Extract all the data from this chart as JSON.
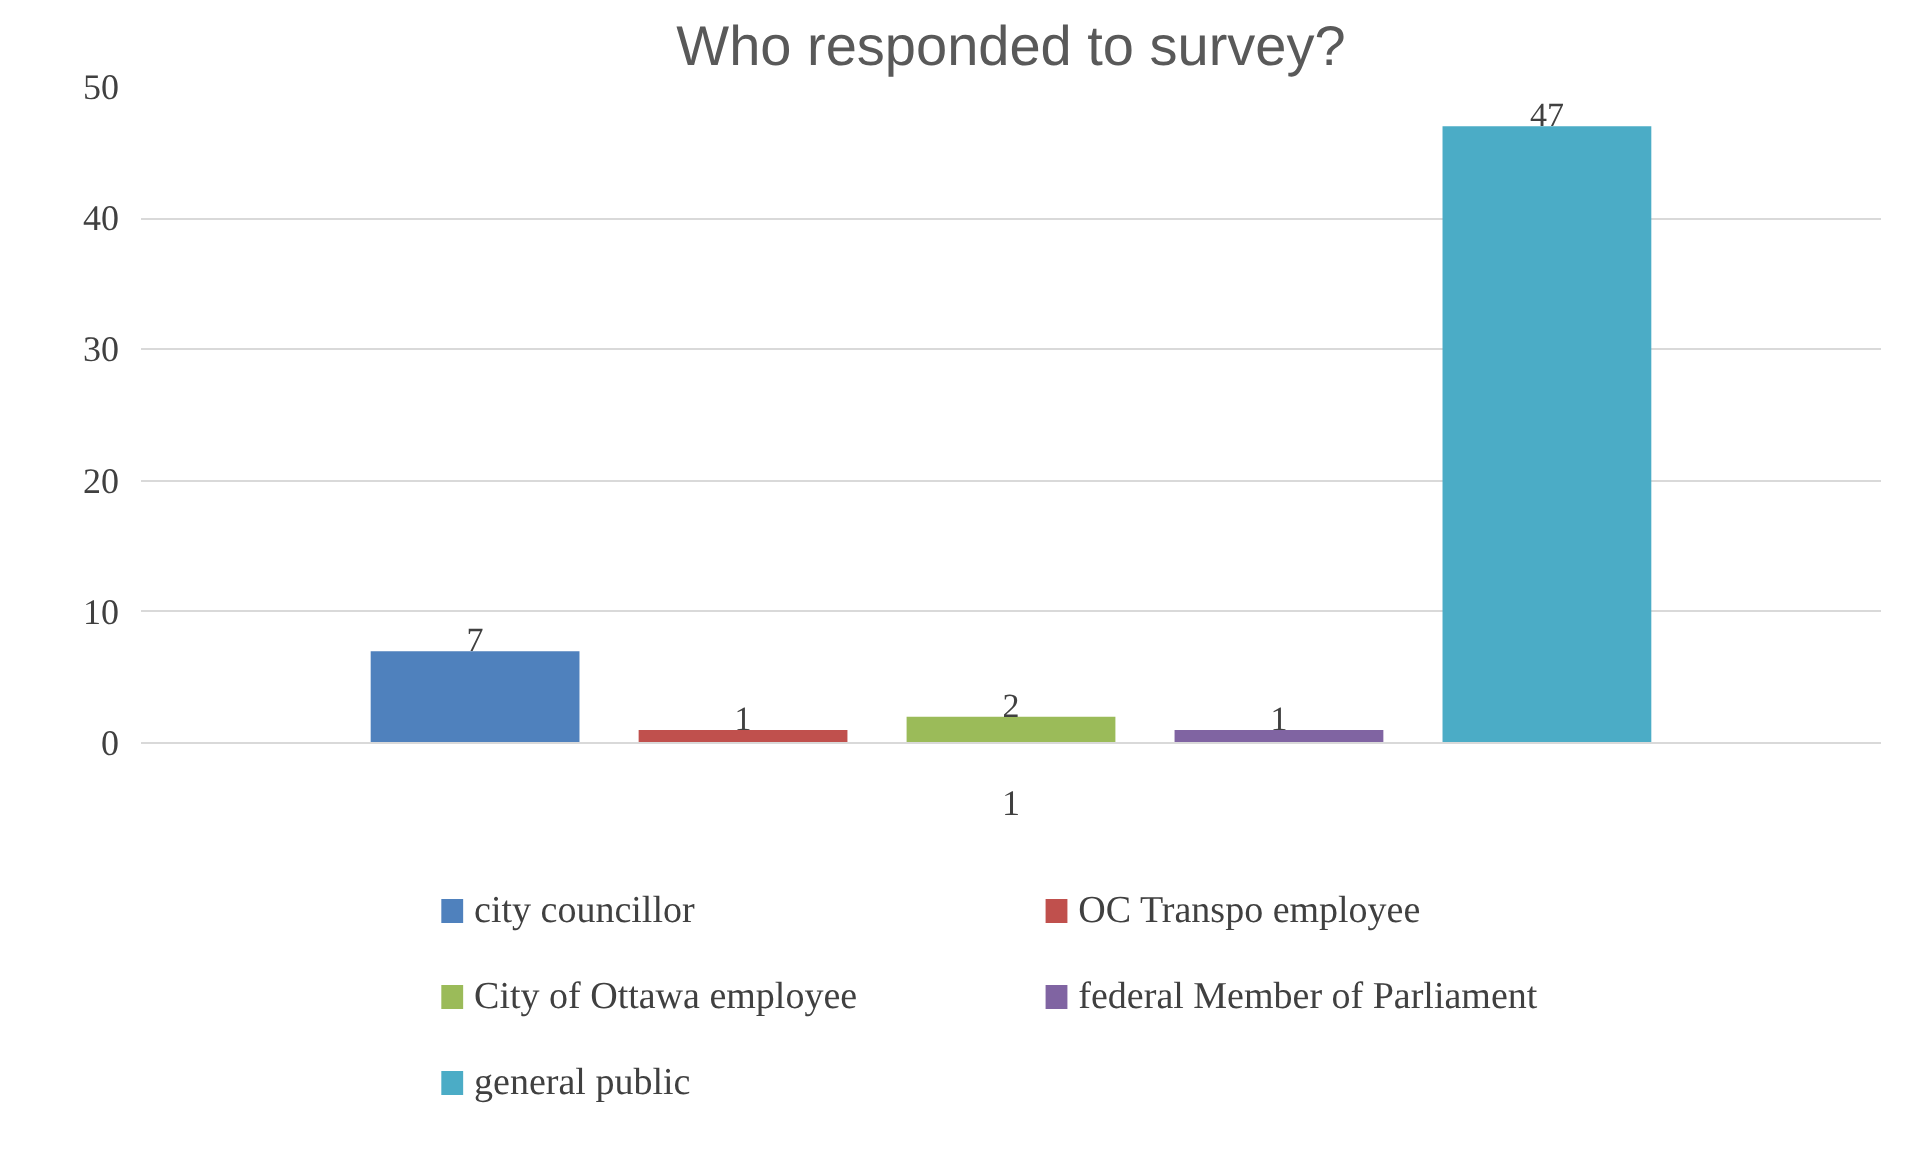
{
  "chart_data": {
    "type": "bar",
    "title": "Who responded to survey?",
    "categories": [
      "1"
    ],
    "series": [
      {
        "name": "city councillor",
        "color": "#4f81bd",
        "values": [
          7
        ]
      },
      {
        "name": "OC Transpo employee",
        "color": "#c0504d",
        "values": [
          1
        ]
      },
      {
        "name": "City of Ottawa employee",
        "color": "#9bbb59",
        "values": [
          2
        ]
      },
      {
        "name": "federal Member of Parliament",
        "color": "#8064a2",
        "values": [
          1
        ]
      },
      {
        "name": "general public",
        "color": "#4bacc6",
        "values": [
          47
        ]
      }
    ],
    "ylim": [
      0,
      50
    ],
    "yticks": [
      0,
      10,
      20,
      30,
      40,
      50
    ],
    "grid": "y",
    "legend": "bottom",
    "data_labels": true
  }
}
